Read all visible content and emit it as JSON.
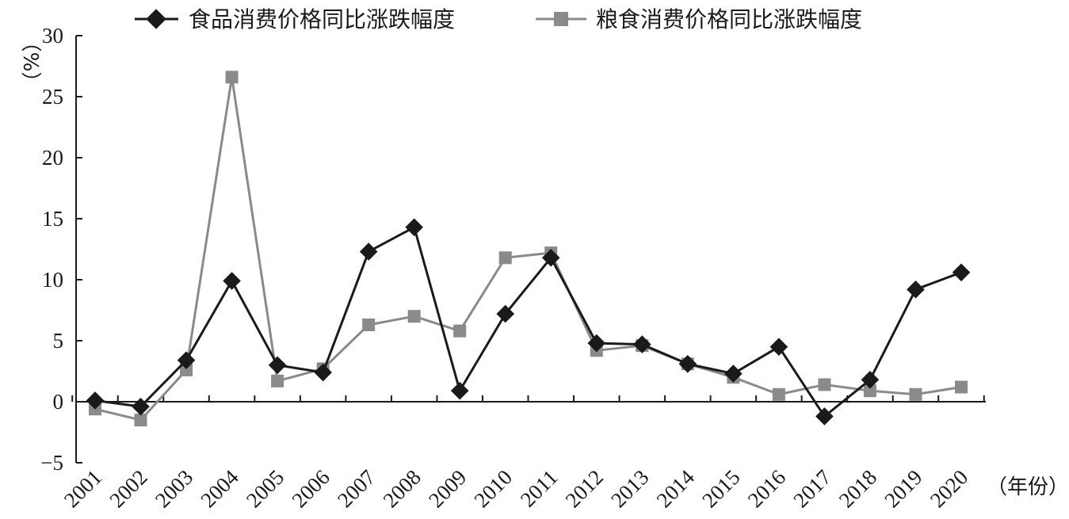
{
  "chart_data": {
    "type": "line",
    "title": "",
    "ylabel": "（%）",
    "xlabel": "（年份）",
    "ylim": [
      -5,
      30
    ],
    "yticks": [
      "30",
      "25",
      "20",
      "15",
      "10",
      "5",
      "0",
      "−5"
    ],
    "categories": [
      "2001",
      "2002",
      "2003",
      "2004",
      "2005",
      "2006",
      "2007",
      "2008",
      "2009",
      "2010",
      "2011",
      "2012",
      "2013",
      "2014",
      "2015",
      "2016",
      "2017",
      "2018",
      "2019",
      "2020"
    ],
    "legend_position": "top",
    "series": [
      {
        "name": "食品消费价格同比涨跌幅度",
        "color": "#1a1a1a",
        "marker": "diamond",
        "values": [
          0.1,
          -0.4,
          3.4,
          9.9,
          3.0,
          2.4,
          12.3,
          14.3,
          0.9,
          7.2,
          11.8,
          4.8,
          4.7,
          3.1,
          2.3,
          4.5,
          -1.2,
          1.8,
          9.2,
          10.6
        ]
      },
      {
        "name": "粮食消费价格同比涨跌幅度",
        "color": "#8a8a8a",
        "marker": "square",
        "values": [
          -0.6,
          -1.5,
          2.6,
          26.6,
          1.7,
          2.7,
          6.3,
          7.0,
          5.8,
          11.8,
          12.2,
          4.2,
          4.6,
          3.1,
          2.0,
          0.6,
          1.4,
          0.9,
          0.6,
          1.2
        ]
      }
    ]
  }
}
